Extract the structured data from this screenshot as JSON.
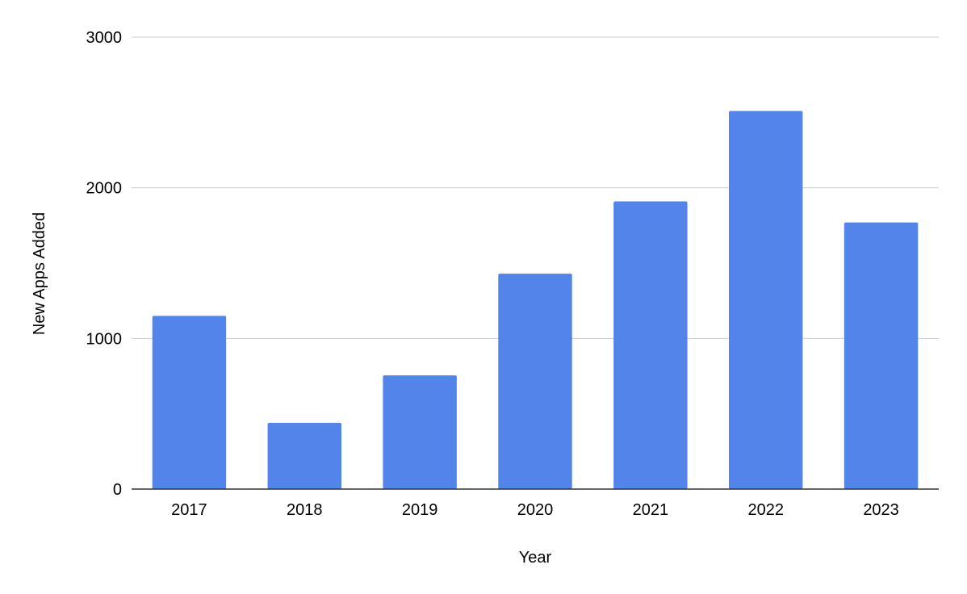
{
  "chart_data": {
    "type": "bar",
    "categories": [
      "2017",
      "2018",
      "2019",
      "2020",
      "2021",
      "2022",
      "2023"
    ],
    "values": [
      1150,
      440,
      755,
      1430,
      1910,
      2510,
      1770
    ],
    "xlabel": "Year",
    "ylabel": "New Apps Added",
    "ylim": [
      0,
      3000
    ],
    "yticks": [
      "0",
      "1000",
      "2000",
      "3000"
    ],
    "grid": true,
    "legend": "none",
    "bar_color": "#5384ea"
  }
}
